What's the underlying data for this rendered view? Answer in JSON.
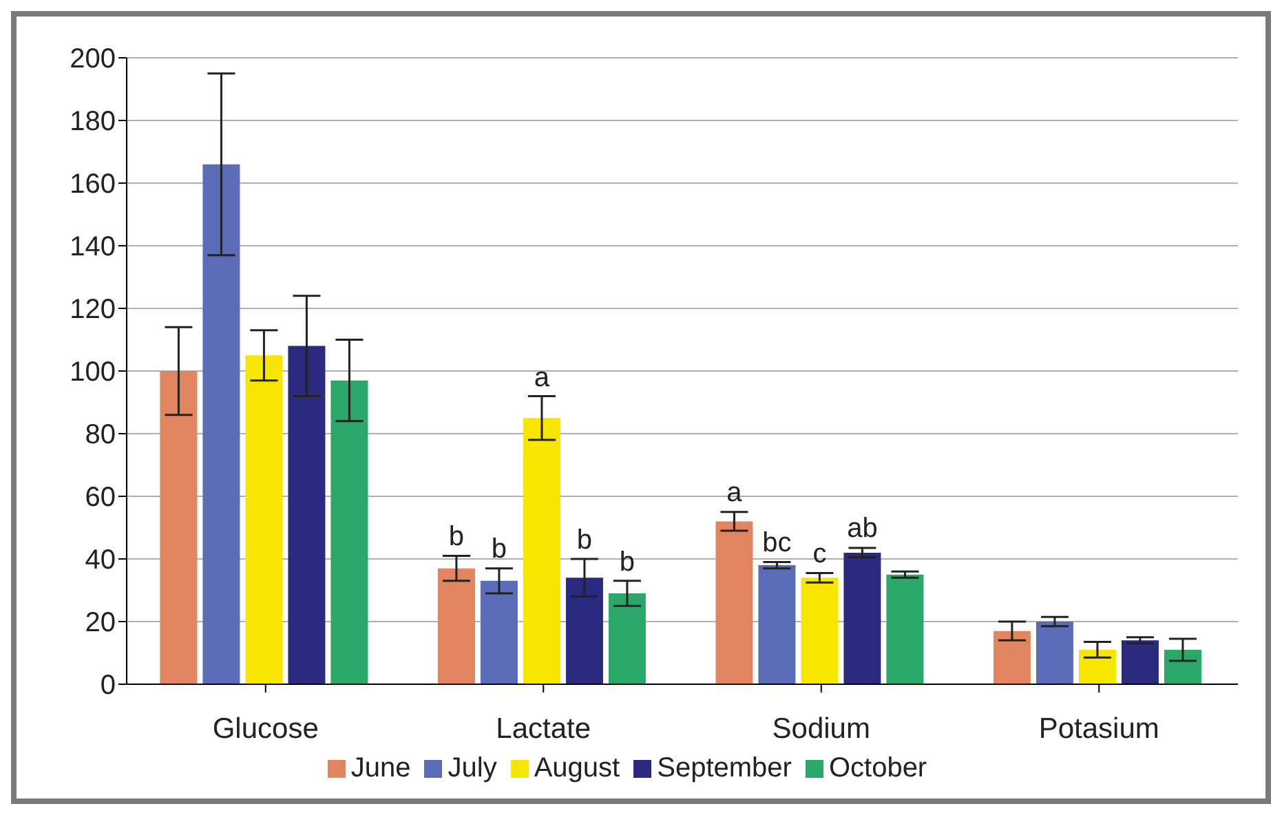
{
  "chart_data": {
    "type": "bar",
    "categories": [
      "Glucose",
      "Lactate",
      "Sodium",
      "Potasium"
    ],
    "series": [
      {
        "name": "June",
        "color": "#e0855f",
        "values": [
          100,
          37,
          52,
          17
        ],
        "errors": [
          14,
          4,
          3,
          3
        ],
        "value_labels": [
          null,
          "b",
          "a",
          null
        ]
      },
      {
        "name": "July",
        "color": "#5b6bb5",
        "values": [
          166,
          33,
          38,
          20
        ],
        "errors": [
          29,
          4,
          1,
          1.5
        ],
        "value_labels": [
          null,
          "b",
          "bc",
          null
        ]
      },
      {
        "name": "August",
        "color": "#f7e600",
        "values": [
          105,
          85,
          34,
          11
        ],
        "errors": [
          8,
          7,
          1.5,
          2.5
        ],
        "value_labels": [
          null,
          "a",
          "c",
          null
        ]
      },
      {
        "name": "September",
        "color": "#2a2a80",
        "values": [
          108,
          34,
          42,
          14
        ],
        "errors": [
          16,
          6,
          1.5,
          1
        ],
        "value_labels": [
          null,
          "b",
          "ab",
          null
        ]
      },
      {
        "name": "October",
        "color": "#2aa86a",
        "values": [
          97,
          29,
          35,
          11
        ],
        "errors": [
          13,
          4,
          1,
          3.5
        ],
        "value_labels": [
          null,
          "b",
          null,
          null
        ]
      }
    ],
    "ylim": [
      0,
      200
    ],
    "yticks": [
      0,
      20,
      40,
      60,
      80,
      100,
      120,
      140,
      160,
      180,
      200
    ],
    "grid": "y",
    "legend": "bottom"
  }
}
